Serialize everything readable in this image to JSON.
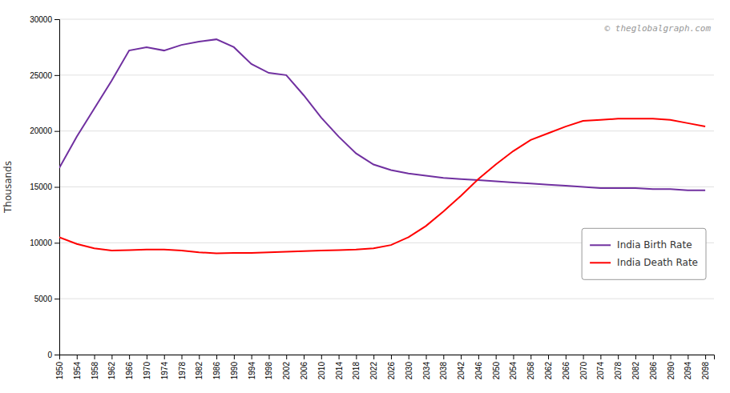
{
  "chart_data": {
    "type": "line",
    "y_label": "Thousands",
    "annotations": [
      "© theglobalgraph.com"
    ],
    "x": [
      1950,
      1954,
      1958,
      1962,
      1966,
      1970,
      1974,
      1978,
      1982,
      1986,
      1990,
      1994,
      1998,
      2002,
      2006,
      2010,
      2014,
      2018,
      2022,
      2026,
      2030,
      2034,
      2038,
      2042,
      2046,
      2050,
      2054,
      2058,
      2062,
      2066,
      2070,
      2074,
      2078,
      2082,
      2086,
      2090,
      2094,
      2098
    ],
    "series": [
      {
        "name": "India Birth Rate",
        "color": "#7030A0",
        "values": [
          16700,
          19500,
          22000,
          24500,
          27200,
          27500,
          27200,
          27700,
          28000,
          28200,
          27500,
          26000,
          25200,
          25000,
          23200,
          21200,
          19500,
          18000,
          17000,
          16500,
          16200,
          16000,
          15800,
          15700,
          15600,
          15500,
          15400,
          15300,
          15200,
          15100,
          15000,
          14900,
          14900,
          14900,
          14800,
          14800,
          14700,
          14700
        ]
      },
      {
        "name": "India Death Rate",
        "color": "#FF0000",
        "values": [
          10500,
          9900,
          9500,
          9300,
          9350,
          9400,
          9400,
          9300,
          9150,
          9050,
          9100,
          9100,
          9150,
          9200,
          9250,
          9300,
          9350,
          9400,
          9500,
          9800,
          10500,
          11500,
          12800,
          14200,
          15700,
          17000,
          18200,
          19200,
          19800,
          20400,
          20900,
          21000,
          21100,
          21100,
          21100,
          21000,
          20700,
          20400
        ]
      }
    ],
    "xlim": [
      1950,
      2100
    ],
    "xticks": [
      1950,
      1954,
      1958,
      1962,
      1966,
      1970,
      1974,
      1978,
      1982,
      1986,
      1990,
      1994,
      1998,
      2002,
      2006,
      2010,
      2014,
      2018,
      2022,
      2026,
      2030,
      2034,
      2038,
      2042,
      2046,
      2050,
      2054,
      2058,
      2062,
      2066,
      2070,
      2074,
      2078,
      2082,
      2086,
      2090,
      2094,
      2098
    ],
    "ylim": [
      0,
      30000
    ],
    "yticks": [
      0,
      5000,
      10000,
      15000,
      20000,
      25000,
      30000
    ],
    "grid": true,
    "legend": "right"
  }
}
